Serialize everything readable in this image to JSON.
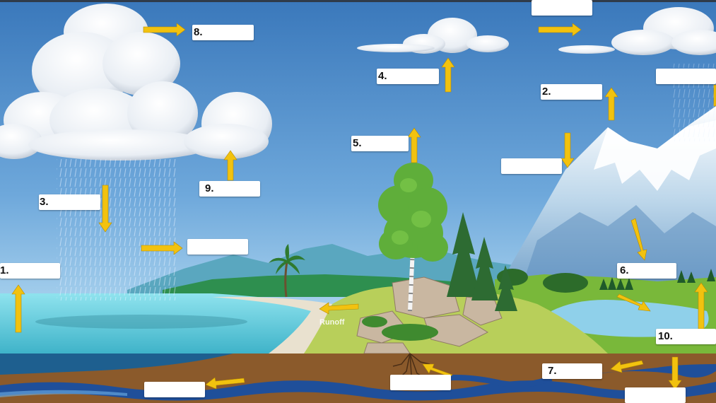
{
  "diagram": {
    "labels": [
      {
        "id": "1",
        "text": "1."
      },
      {
        "id": "2",
        "text": "2."
      },
      {
        "id": "3",
        "text": "3."
      },
      {
        "id": "4",
        "text": "4."
      },
      {
        "id": "5",
        "text": "5."
      },
      {
        "id": "6",
        "text": "6."
      },
      {
        "id": "7",
        "text": "7."
      },
      {
        "id": "8",
        "text": "8."
      },
      {
        "id": "9",
        "text": "9."
      },
      {
        "id": "10",
        "text": "10."
      }
    ],
    "visible_words": {
      "runoff": "Runoff"
    },
    "colors": {
      "arrow": "#f2c20f",
      "sky_top": "#3e7fc0",
      "ocean": "#6fd2e0",
      "ground": "#8b5a2b",
      "groundwater": "#1f4f9a"
    }
  }
}
